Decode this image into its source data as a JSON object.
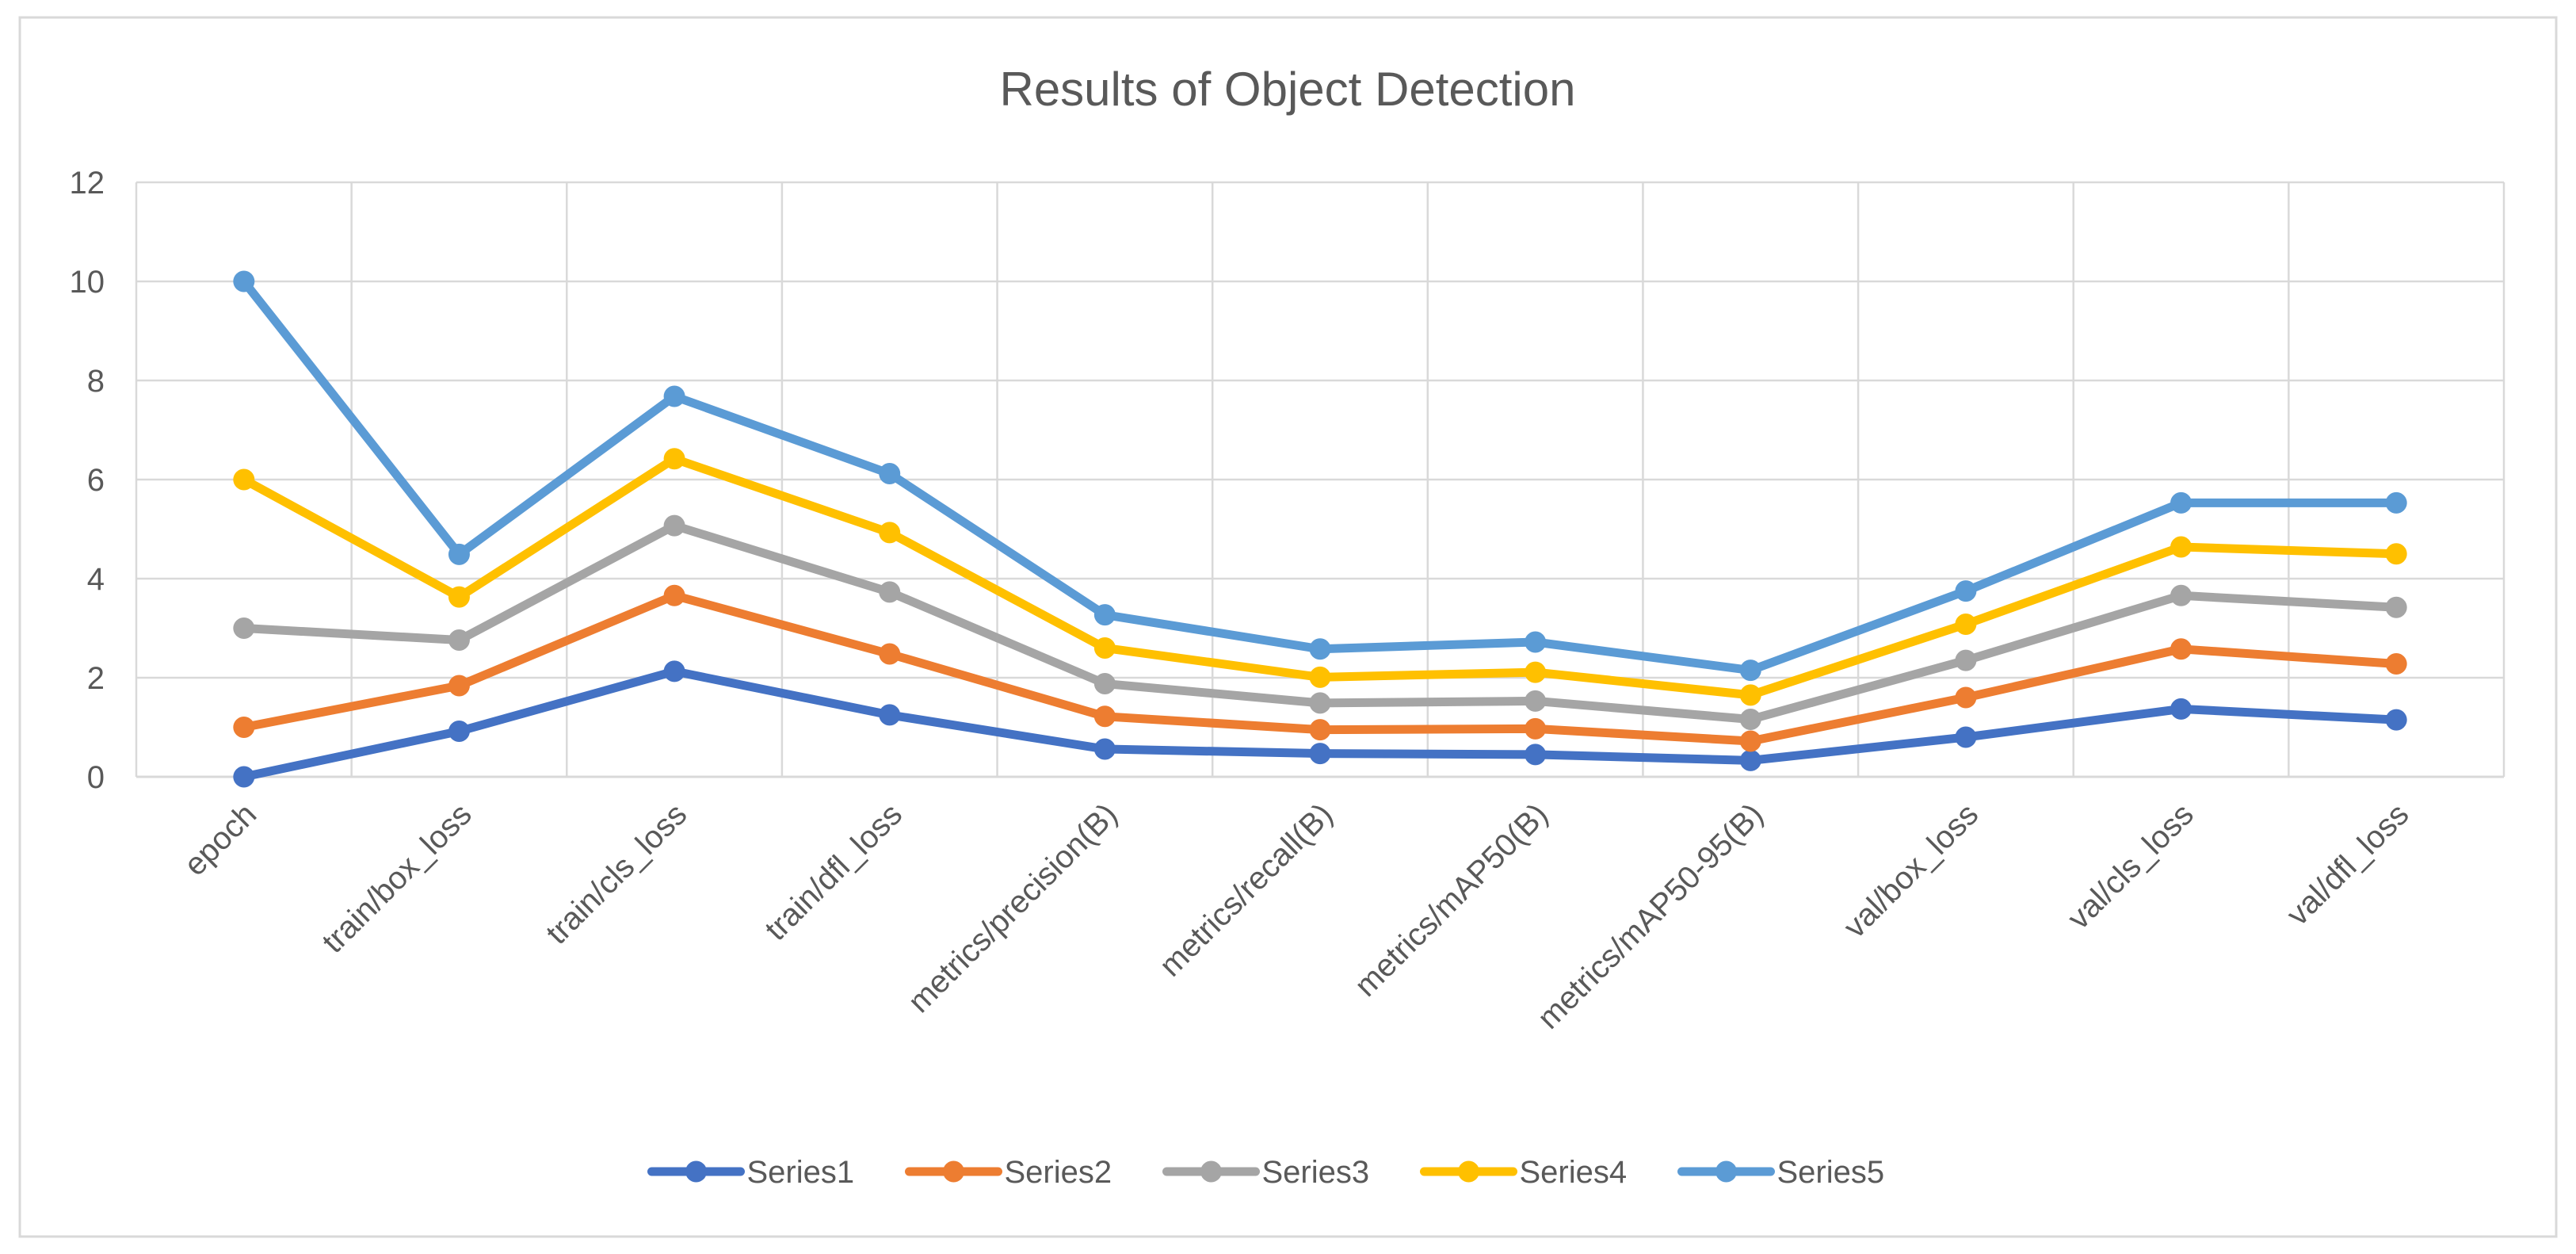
{
  "chart_data": {
    "type": "line",
    "title": "Results of Object Detection",
    "xlabel": "",
    "ylabel": "",
    "ylim": [
      0,
      12
    ],
    "yticks": [
      0,
      2,
      4,
      6,
      8,
      10,
      12
    ],
    "grid": true,
    "legend_position": "bottom",
    "categories": [
      "epoch",
      "train/box_loss",
      "train/cls_loss",
      "train/dfl_loss",
      "metrics/precision(B)",
      "metrics/recall(B)",
      "metrics/mAP50(B)",
      "metrics/mAP50-95(B)",
      "val/box_loss",
      "val/cls_loss",
      "val/dfl_loss"
    ],
    "series": [
      {
        "name": "Series1",
        "color": "#4472C4",
        "values": [
          0,
          0.92,
          2.13,
          1.25,
          0.56,
          0.47,
          0.45,
          0.33,
          0.8,
          1.37,
          1.15
        ]
      },
      {
        "name": "Series2",
        "color": "#ED7D31",
        "values": [
          1.0,
          1.84,
          3.66,
          2.48,
          1.22,
          0.95,
          0.97,
          0.72,
          1.6,
          2.58,
          2.28
        ]
      },
      {
        "name": "Series3",
        "color": "#A5A5A5",
        "values": [
          3.0,
          2.76,
          5.07,
          3.73,
          1.88,
          1.49,
          1.53,
          1.16,
          2.35,
          3.66,
          3.42
        ]
      },
      {
        "name": "Series4",
        "color": "#FFC000",
        "values": [
          6.0,
          3.63,
          6.42,
          4.93,
          2.6,
          2.01,
          2.11,
          1.65,
          3.08,
          4.64,
          4.5
        ]
      },
      {
        "name": "Series5",
        "color": "#5B9BD5",
        "values": [
          10.0,
          4.49,
          7.68,
          6.12,
          3.27,
          2.58,
          2.72,
          2.15,
          3.75,
          5.53,
          5.53
        ]
      }
    ]
  }
}
